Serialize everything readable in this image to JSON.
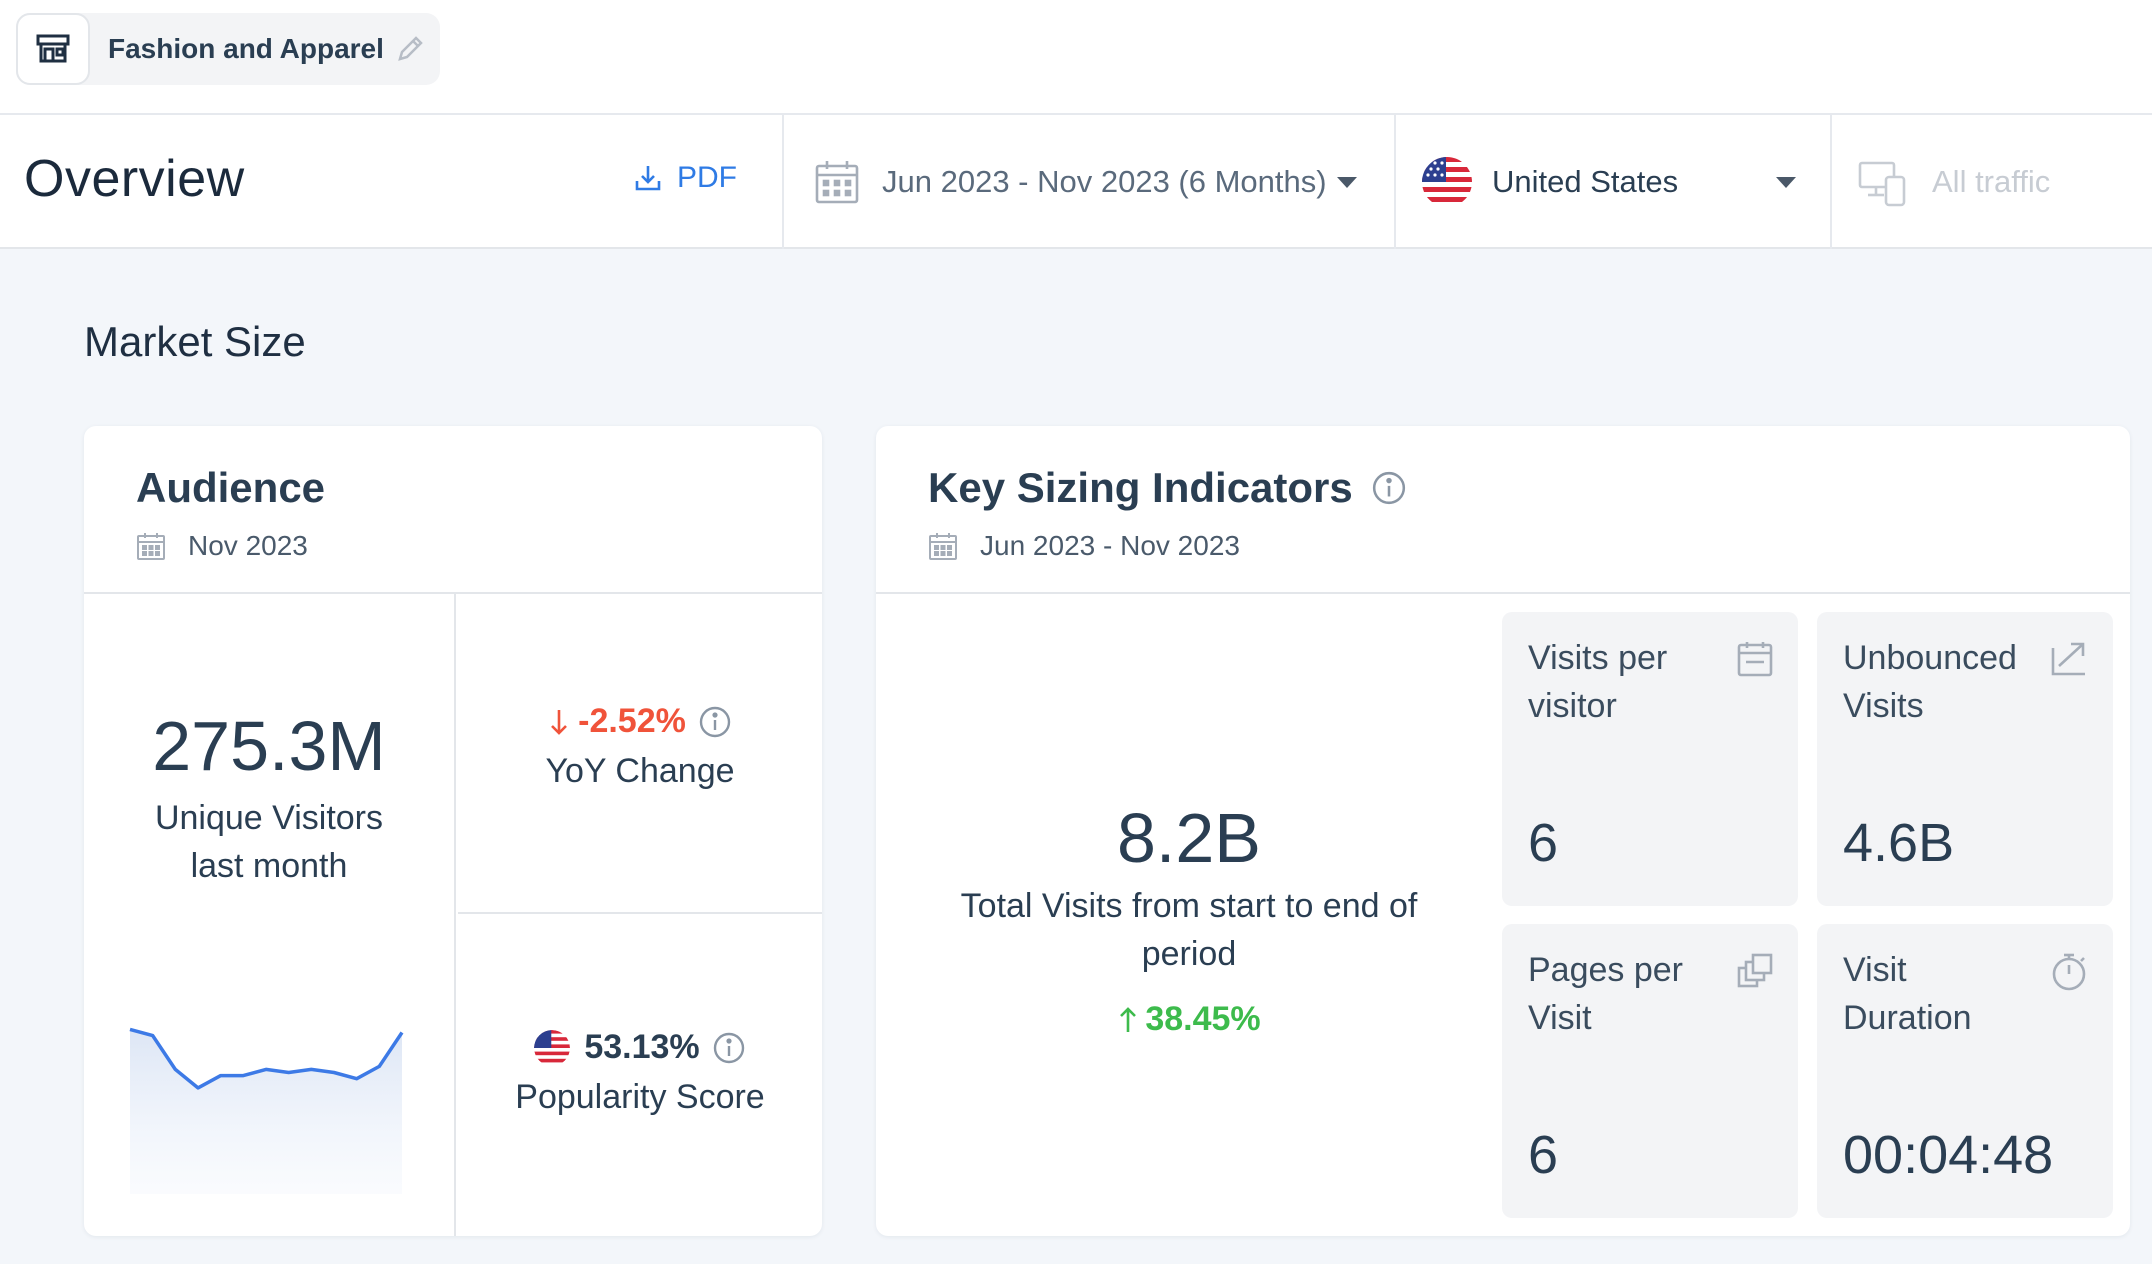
{
  "category": {
    "title": "Fashion and Apparel",
    "icon": "shop-icon",
    "edit_icon": "pencil-icon"
  },
  "header": {
    "page_title": "Overview",
    "pdf_label": "PDF",
    "date_range": "Jun 2023 - Nov 2023 (6 Months)",
    "country": "United States",
    "traffic": "All traffic"
  },
  "section": {
    "title": "Market Size"
  },
  "audience": {
    "title": "Audience",
    "period": "Nov 2023",
    "unique_visitors": "275.3M",
    "unique_visitors_label_1": "Unique Visitors",
    "unique_visitors_label_2": "last month",
    "yoy_value": "-2.52%",
    "yoy_label": "YoY Change",
    "popularity_value": "53.13%",
    "popularity_label": "Popularity Score",
    "sparkline": [
      0.95,
      0.93,
      0.82,
      0.76,
      0.8,
      0.8,
      0.82,
      0.81,
      0.82,
      0.81,
      0.79,
      0.83,
      0.94
    ]
  },
  "ksi": {
    "title": "Key Sizing Indicators",
    "period": "Jun 2023 - Nov 2023",
    "total_visits": "8.2B",
    "total_visits_label_1": "Total Visits from start to end of",
    "total_visits_label_2": "period",
    "growth": "38.45%",
    "tiles": [
      {
        "label_1": "Visits per",
        "label_2": "visitor",
        "value": "6",
        "icon": "calendar-icon"
      },
      {
        "label_1": "Unbounced",
        "label_2": "Visits",
        "value": "4.6B",
        "icon": "trend-up-icon"
      },
      {
        "label_1": "Pages per",
        "label_2": "Visit",
        "value": "6",
        "icon": "pages-icon"
      },
      {
        "label_1": "Visit",
        "label_2": "Duration",
        "value": "00:04:48",
        "icon": "stopwatch-icon"
      }
    ]
  },
  "colors": {
    "accent": "#2f7be5",
    "negative": "#f0533a",
    "positive": "#3dbb4c",
    "text": "#2a3e52"
  }
}
